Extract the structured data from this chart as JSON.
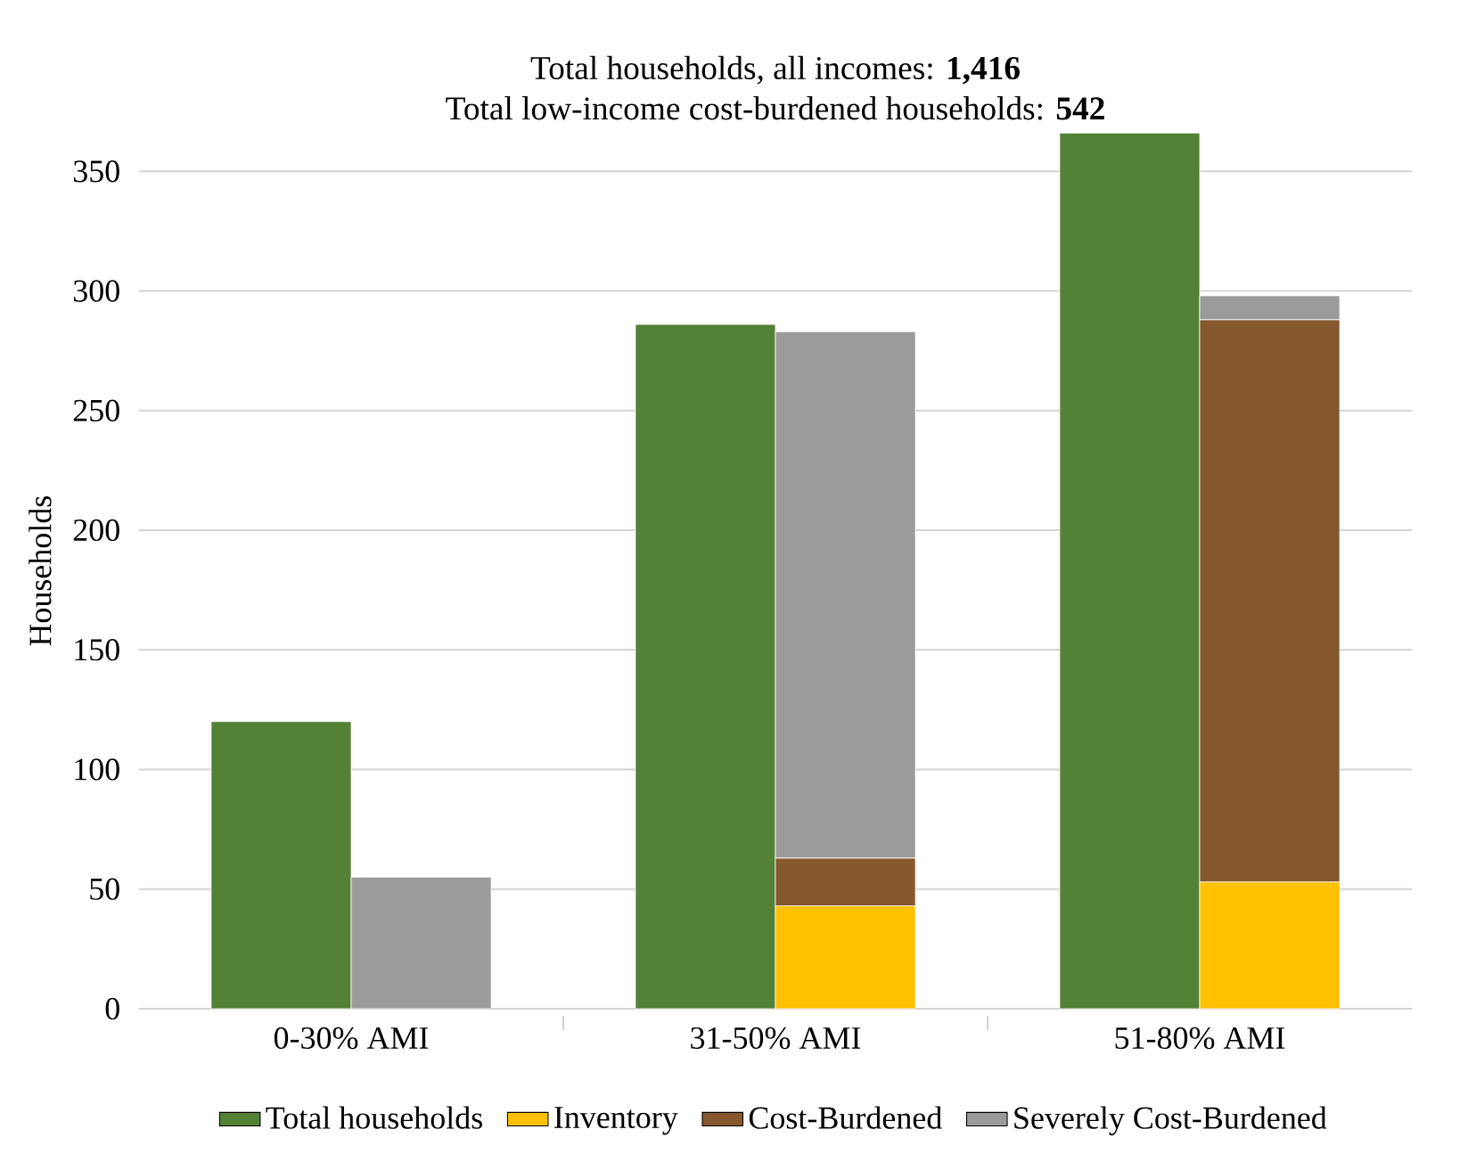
{
  "chart_data": {
    "type": "bar",
    "title": "Total households, all incomes: **1,416**",
    "subtitle": "Total low-income cost-burdened households: **542**",
    "ylabel": "Households",
    "categories": [
      "0-30% AMI",
      "31-50% AMI",
      "51-80% AMI"
    ],
    "series": [
      {
        "name": "Total households",
        "color": "#538135",
        "values": [
          120,
          286,
          366
        ]
      },
      {
        "name": "Inventory",
        "color": "#ffc000",
        "values": [
          null,
          43,
          53
        ],
        "base": [
          null,
          0,
          0
        ]
      },
      {
        "name": "Cost-Burdened",
        "color": "#85582e",
        "values": [
          null,
          20,
          235
        ],
        "base": [
          null,
          43,
          53
        ]
      },
      {
        "name": "Severely Cost-Burdened",
        "color": "#9b9b9b",
        "values": [
          55,
          220,
          10
        ],
        "base": [
          0,
          63,
          288
        ]
      }
    ],
    "ylim": [
      0,
      366
    ],
    "yticks": [
      0,
      50,
      100,
      150,
      200,
      250,
      300,
      350
    ],
    "grid": "y",
    "legend": "bottom"
  }
}
